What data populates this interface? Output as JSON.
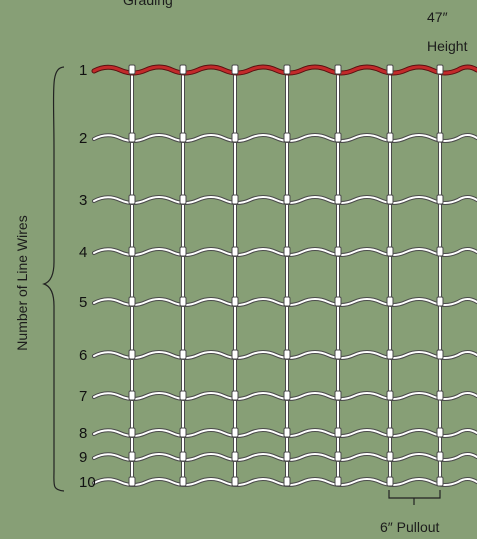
{
  "title_partial": "Grading",
  "height_label_value": "47″",
  "height_label_word": "Height",
  "axis_label": "Number of Line Wires",
  "pullout_label": "6″ Pullout",
  "line_wires": [
    "1",
    "2",
    "3",
    "4",
    "5",
    "6",
    "7",
    "8",
    "9",
    "10"
  ],
  "colors": {
    "background": "#879f76",
    "wire": "#ffffff",
    "wire_outline": "#4a4a4a",
    "top_wire": "#c22a2a"
  }
}
